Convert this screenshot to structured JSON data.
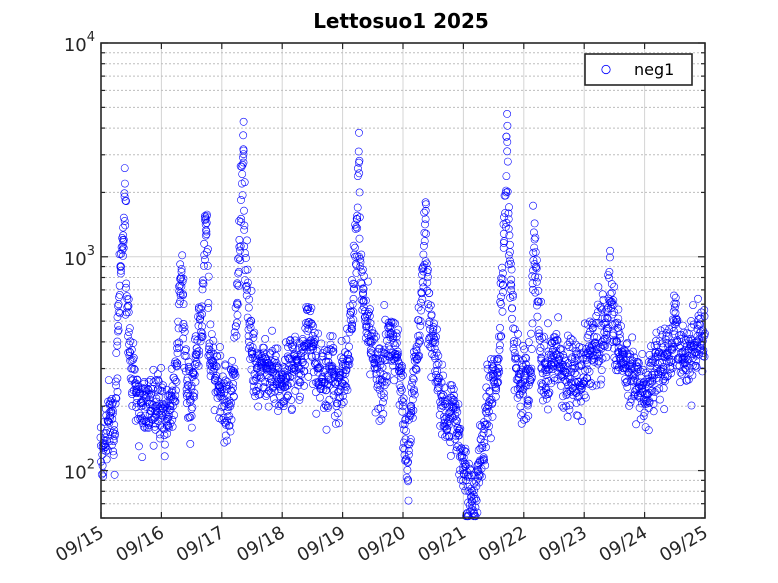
{
  "chart_data": {
    "type": "scatter",
    "title": "Lettosuo1 2025",
    "xlabel": "",
    "ylabel": "",
    "y_scale": "log",
    "ylim": [
      60,
      10000
    ],
    "xlim": [
      "2025-09-15",
      "2025-09-25"
    ],
    "x_tick_labels": [
      "09/15",
      "09/16",
      "09/17",
      "09/18",
      "09/19",
      "09/20",
      "09/21",
      "09/22",
      "09/23",
      "09/24",
      "09/25"
    ],
    "y_ticks": [
      {
        "base": "10",
        "exp": "2",
        "value": 100
      },
      {
        "base": "10",
        "exp": "3",
        "value": 1000
      },
      {
        "base": "10",
        "exp": "4",
        "value": 10000
      }
    ],
    "grid": true,
    "legend": {
      "placement": "top-right",
      "entries": [
        "neg1"
      ]
    },
    "series": [
      {
        "name": "neg1",
        "color": "#0000ff",
        "marker": "circle-open",
        "points": [
          [
            "2025-09-15 00:00",
            110
          ],
          [
            "2025-09-15 01:00",
            125
          ],
          [
            "2025-09-15 02:00",
            150
          ],
          [
            "2025-09-15 03:00",
            170
          ],
          [
            "2025-09-15 04:00",
            190
          ],
          [
            "2025-09-15 05:00",
            140
          ],
          [
            "2025-09-15 06:00",
            250
          ],
          [
            "2025-09-15 07:00",
            600
          ],
          [
            "2025-09-15 08:00",
            900
          ],
          [
            "2025-09-15 09:00",
            1100
          ],
          [
            "2025-09-15 09:30",
            2200
          ],
          [
            "2025-09-15 10:00",
            750
          ],
          [
            "2025-09-15 11:00",
            550
          ],
          [
            "2025-09-15 12:00",
            300
          ],
          [
            "2025-09-15 14:00",
            230
          ],
          [
            "2025-09-15 16:00",
            200
          ],
          [
            "2025-09-15 18:00",
            220
          ],
          [
            "2025-09-15 20:00",
            190
          ],
          [
            "2025-09-15 22:00",
            210
          ],
          [
            "2025-09-16 00:00",
            200
          ],
          [
            "2025-09-16 02:00",
            170
          ],
          [
            "2025-09-16 04:00",
            220
          ],
          [
            "2025-09-16 06:00",
            260
          ],
          [
            "2025-09-16 07:00",
            600
          ],
          [
            "2025-09-16 08:00",
            850
          ],
          [
            "2025-09-16 10:00",
            240
          ],
          [
            "2025-09-16 12:00",
            180
          ],
          [
            "2025-09-16 14:00",
            350
          ],
          [
            "2025-09-16 16:00",
            420
          ],
          [
            "2025-09-16 17:00",
            1150
          ],
          [
            "2025-09-16 18:00",
            1550
          ],
          [
            "2025-09-16 19:00",
            380
          ],
          [
            "2025-09-16 21:00",
            300
          ],
          [
            "2025-09-16 23:00",
            250
          ],
          [
            "2025-09-17 01:00",
            200
          ],
          [
            "2025-09-17 03:00",
            180
          ],
          [
            "2025-09-17 05:00",
            300
          ],
          [
            "2025-09-17 06:00",
            600
          ],
          [
            "2025-09-17 07:00",
            1200
          ],
          [
            "2025-09-17 08:00",
            2200
          ],
          [
            "2025-09-17 08:30",
            3700
          ],
          [
            "2025-09-17 09:00",
            1400
          ],
          [
            "2025-09-17 10:00",
            700
          ],
          [
            "2025-09-17 12:00",
            350
          ],
          [
            "2025-09-17 14:00",
            300
          ],
          [
            "2025-09-17 16:00",
            320
          ],
          [
            "2025-09-17 18:00",
            280
          ],
          [
            "2025-09-17 20:00",
            300
          ],
          [
            "2025-09-17 22:00",
            260
          ],
          [
            "2025-09-18 00:00",
            250
          ],
          [
            "2025-09-18 02:00",
            280
          ],
          [
            "2025-09-18 04:00",
            300
          ],
          [
            "2025-09-18 06:00",
            330
          ],
          [
            "2025-09-18 08:00",
            320
          ],
          [
            "2025-09-18 10:00",
            450
          ],
          [
            "2025-09-18 12:00",
            380
          ],
          [
            "2025-09-18 14:00",
            300
          ],
          [
            "2025-09-18 16:00",
            260
          ],
          [
            "2025-09-18 18:00",
            280
          ],
          [
            "2025-09-18 20:00",
            300
          ],
          [
            "2025-09-18 22:00",
            260
          ],
          [
            "2025-09-19 00:00",
            280
          ],
          [
            "2025-09-19 02:00",
            350
          ],
          [
            "2025-09-19 04:00",
            600
          ],
          [
            "2025-09-19 05:00",
            1000
          ],
          [
            "2025-09-19 06:00",
            1700
          ],
          [
            "2025-09-19 06:30",
            3800
          ],
          [
            "2025-09-19 07:00",
            900
          ],
          [
            "2025-09-19 09:00",
            500
          ],
          [
            "2025-09-19 11:00",
            400
          ],
          [
            "2025-09-19 13:00",
            300
          ],
          [
            "2025-09-19 15:00",
            250
          ],
          [
            "2025-09-19 17:00",
            330
          ],
          [
            "2025-09-19 19:00",
            420
          ],
          [
            "2025-09-19 21:00",
            350
          ],
          [
            "2025-09-19 23:00",
            300
          ],
          [
            "2025-09-20 00:00",
            200
          ],
          [
            "2025-09-20 01:00",
            140
          ],
          [
            "2025-09-20 02:00",
            110
          ],
          [
            "2025-09-20 03:00",
            180
          ],
          [
            "2025-09-20 05:00",
            300
          ],
          [
            "2025-09-20 07:00",
            500
          ],
          [
            "2025-09-20 08:00",
            900
          ],
          [
            "2025-09-20 09:00",
            1500
          ],
          [
            "2025-09-20 10:00",
            600
          ],
          [
            "2025-09-20 12:00",
            400
          ],
          [
            "2025-09-20 14:00",
            260
          ],
          [
            "2025-09-20 16:00",
            200
          ],
          [
            "2025-09-20 18:00",
            170
          ],
          [
            "2025-09-20 20:00",
            200
          ],
          [
            "2025-09-20 22:00",
            150
          ],
          [
            "2025-09-21 00:00",
            110
          ],
          [
            "2025-09-21 01:00",
            90
          ],
          [
            "2025-09-21 02:00",
            80
          ],
          [
            "2025-09-21 03:00",
            75
          ],
          [
            "2025-09-21 04:00",
            65
          ],
          [
            "2025-09-21 06:00",
            100
          ],
          [
            "2025-09-21 08:00",
            150
          ],
          [
            "2025-09-21 10:00",
            200
          ],
          [
            "2025-09-21 12:00",
            260
          ],
          [
            "2025-09-21 14:00",
            300
          ],
          [
            "2025-09-21 15:00",
            600
          ],
          [
            "2025-09-21 16:00",
            1100
          ],
          [
            "2025-09-21 17:00",
            2000
          ],
          [
            "2025-09-21 17:30",
            4100
          ],
          [
            "2025-09-21 18:00",
            1500
          ],
          [
            "2025-09-21 19:00",
            700
          ],
          [
            "2025-09-21 21:00",
            300
          ],
          [
            "2025-09-21 23:00",
            250
          ],
          [
            "2025-09-22 01:00",
            250
          ],
          [
            "2025-09-22 03:00",
            300
          ],
          [
            "2025-09-22 04:00",
            1300
          ],
          [
            "2025-09-22 05:00",
            900
          ],
          [
            "2025-09-22 07:00",
            300
          ],
          [
            "2025-09-22 09:00",
            280
          ],
          [
            "2025-09-22 11:00",
            330
          ],
          [
            "2025-09-22 13:00",
            350
          ],
          [
            "2025-09-22 15:00",
            300
          ],
          [
            "2025-09-22 17:00",
            260
          ],
          [
            "2025-09-22 19:00",
            300
          ],
          [
            "2025-09-22 21:00",
            280
          ],
          [
            "2025-09-22 23:00",
            250
          ],
          [
            "2025-09-23 01:00",
            330
          ],
          [
            "2025-09-23 03:00",
            380
          ],
          [
            "2025-09-23 05:00",
            420
          ],
          [
            "2025-09-23 07:00",
            400
          ],
          [
            "2025-09-23 09:00",
            450
          ],
          [
            "2025-09-23 10:00",
            850
          ],
          [
            "2025-09-23 11:00",
            600
          ],
          [
            "2025-09-23 13:00",
            400
          ],
          [
            "2025-09-23 15:00",
            350
          ],
          [
            "2025-09-23 17:00",
            300
          ],
          [
            "2025-09-23 19:00",
            280
          ],
          [
            "2025-09-23 21:00",
            260
          ],
          [
            "2025-09-23 23:00",
            250
          ],
          [
            "2025-09-24 01:00",
            230
          ],
          [
            "2025-09-24 03:00",
            280
          ],
          [
            "2025-09-24 05:00",
            300
          ],
          [
            "2025-09-24 07:00",
            320
          ],
          [
            "2025-09-24 09:00",
            350
          ],
          [
            "2025-09-24 11:00",
            380
          ],
          [
            "2025-09-24 12:00",
            580
          ],
          [
            "2025-09-24 13:00",
            400
          ],
          [
            "2025-09-24 15:00",
            360
          ],
          [
            "2025-09-24 17:00",
            330
          ],
          [
            "2025-09-24 19:00",
            380
          ],
          [
            "2025-09-24 21:00",
            400
          ],
          [
            "2025-09-24 23:00",
            420
          ]
        ]
      }
    ]
  }
}
